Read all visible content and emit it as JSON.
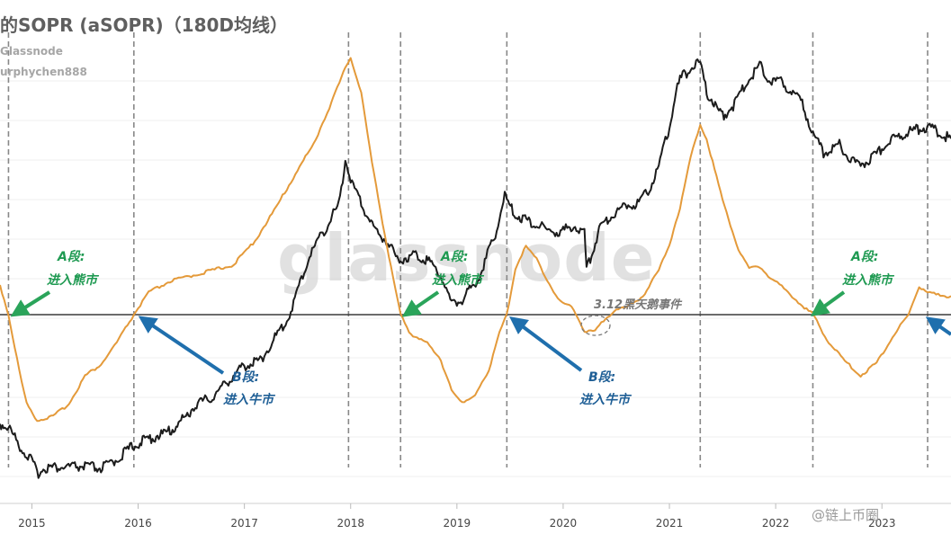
{
  "header": {
    "title": "的SOPR (aSOPR)（180D均线）",
    "source": "Glassnode",
    "author": "urphychen888"
  },
  "watermark": "glassnode",
  "footer_brand": "@链上币圈",
  "colors": {
    "price": "#1c1c1c",
    "asopr": "#e49a3a",
    "green_arrow": "#2aa45a",
    "blue_arrow": "#1f6fad",
    "divider": "#888888"
  },
  "chart_data": {
    "type": "line",
    "x_ticks": [
      "2015",
      "2016",
      "2017",
      "2018",
      "2019",
      "2020",
      "2021",
      "2022",
      "2023"
    ],
    "xlim": [
      2014.7,
      2023.65
    ],
    "reference_line": {
      "value": 1.0,
      "series": "asopr"
    },
    "vertical_markers": [
      2014.78,
      2015.96,
      2017.98,
      2018.47,
      2019.47,
      2021.29,
      2022.35,
      2023.43
    ],
    "series": [
      {
        "name": "",
        "points": [
          [
            2014.7,
            0.75
          ],
          [
            2014.78,
            0.72
          ],
          [
            2014.9,
            0.52
          ],
          [
            2015.0,
            0.4
          ],
          [
            2015.05,
            0.28
          ],
          [
            2015.12,
            0.34
          ],
          [
            2015.25,
            0.34
          ],
          [
            2015.5,
            0.35
          ],
          [
            2015.65,
            0.33
          ],
          [
            2015.75,
            0.38
          ],
          [
            2015.85,
            0.46
          ],
          [
            2015.96,
            0.55
          ],
          [
            2016.1,
            0.61
          ],
          [
            2016.3,
            0.68
          ],
          [
            2016.45,
            0.82
          ],
          [
            2016.55,
            0.94
          ],
          [
            2016.7,
            1.0
          ],
          [
            2016.85,
            1.16
          ],
          [
            2017.0,
            1.3
          ],
          [
            2017.15,
            1.35
          ],
          [
            2017.3,
            1.58
          ],
          [
            2017.4,
            1.72
          ],
          [
            2017.5,
            2.0
          ],
          [
            2017.6,
            2.3
          ],
          [
            2017.7,
            2.5
          ],
          [
            2017.8,
            2.65
          ],
          [
            2017.9,
            2.85
          ],
          [
            2017.95,
            3.25
          ],
          [
            2018.0,
            3.05
          ],
          [
            2018.1,
            2.82
          ],
          [
            2018.25,
            2.55
          ],
          [
            2018.35,
            2.47
          ],
          [
            2018.45,
            2.28
          ],
          [
            2018.47,
            2.3
          ],
          [
            2018.6,
            2.35
          ],
          [
            2018.75,
            2.28
          ],
          [
            2018.85,
            2.15
          ],
          [
            2018.95,
            1.88
          ],
          [
            2019.05,
            1.92
          ],
          [
            2019.2,
            2.12
          ],
          [
            2019.35,
            2.5
          ],
          [
            2019.45,
            2.9
          ],
          [
            2019.47,
            2.85
          ],
          [
            2019.55,
            2.72
          ],
          [
            2019.7,
            2.65
          ],
          [
            2019.85,
            2.58
          ],
          [
            2019.95,
            2.55
          ],
          [
            2020.0,
            2.57
          ],
          [
            2020.1,
            2.62
          ],
          [
            2020.2,
            2.55
          ],
          [
            2020.22,
            2.2
          ],
          [
            2020.35,
            2.62
          ],
          [
            2020.5,
            2.75
          ],
          [
            2020.6,
            2.82
          ],
          [
            2020.7,
            2.83
          ],
          [
            2020.8,
            2.95
          ],
          [
            2020.9,
            3.18
          ],
          [
            2021.0,
            3.55
          ],
          [
            2021.05,
            3.82
          ],
          [
            2021.1,
            4.0
          ],
          [
            2021.2,
            4.1
          ],
          [
            2021.29,
            4.15
          ],
          [
            2021.35,
            3.88
          ],
          [
            2021.5,
            3.65
          ],
          [
            2021.6,
            3.75
          ],
          [
            2021.7,
            3.92
          ],
          [
            2021.8,
            4.07
          ],
          [
            2021.85,
            4.14
          ],
          [
            2021.95,
            3.98
          ],
          [
            2022.05,
            3.98
          ],
          [
            2022.15,
            3.88
          ],
          [
            2022.25,
            3.76
          ],
          [
            2022.35,
            3.5
          ],
          [
            2022.45,
            3.3
          ],
          [
            2022.6,
            3.38
          ],
          [
            2022.75,
            3.2
          ],
          [
            2022.85,
            3.22
          ],
          [
            2022.95,
            3.3
          ],
          [
            2023.1,
            3.44
          ],
          [
            2023.3,
            3.52
          ],
          [
            2023.45,
            3.55
          ],
          [
            2023.55,
            3.48
          ],
          [
            2023.65,
            3.44
          ]
        ]
      },
      {
        "name": "",
        "points": [
          [
            2014.7,
            1.016
          ],
          [
            2014.78,
            1.0
          ],
          [
            2014.88,
            0.97
          ],
          [
            2014.95,
            0.952
          ],
          [
            2015.05,
            0.943
          ],
          [
            2015.2,
            0.945
          ],
          [
            2015.35,
            0.952
          ],
          [
            2015.5,
            0.967
          ],
          [
            2015.65,
            0.973
          ],
          [
            2015.8,
            0.985
          ],
          [
            2015.96,
            1.0
          ],
          [
            2016.1,
            1.012
          ],
          [
            2016.3,
            1.018
          ],
          [
            2016.5,
            1.021
          ],
          [
            2016.7,
            1.024
          ],
          [
            2016.9,
            1.027
          ],
          [
            2017.1,
            1.04
          ],
          [
            2017.3,
            1.058
          ],
          [
            2017.5,
            1.078
          ],
          [
            2017.65,
            1.092
          ],
          [
            2017.8,
            1.112
          ],
          [
            2017.95,
            1.133
          ],
          [
            2018.0,
            1.139
          ],
          [
            2018.1,
            1.12
          ],
          [
            2018.2,
            1.082
          ],
          [
            2018.3,
            1.05
          ],
          [
            2018.4,
            1.02
          ],
          [
            2018.47,
            1.0
          ],
          [
            2018.55,
            0.99
          ],
          [
            2018.7,
            0.986
          ],
          [
            2018.85,
            0.975
          ],
          [
            2018.95,
            0.96
          ],
          [
            2019.05,
            0.952
          ],
          [
            2019.15,
            0.955
          ],
          [
            2019.3,
            0.97
          ],
          [
            2019.4,
            0.99
          ],
          [
            2019.47,
            1.0
          ],
          [
            2019.55,
            1.025
          ],
          [
            2019.65,
            1.037
          ],
          [
            2019.75,
            1.03
          ],
          [
            2019.85,
            1.019
          ],
          [
            2019.95,
            1.008
          ],
          [
            2020.1,
            1.003
          ],
          [
            2020.2,
            0.991
          ],
          [
            2020.3,
            0.991
          ],
          [
            2020.4,
            0.998
          ],
          [
            2020.5,
            1.003
          ],
          [
            2020.6,
            1.004
          ],
          [
            2020.75,
            1.01
          ],
          [
            2020.9,
            1.024
          ],
          [
            2021.0,
            1.038
          ],
          [
            2021.1,
            1.058
          ],
          [
            2021.2,
            1.085
          ],
          [
            2021.29,
            1.103
          ],
          [
            2021.35,
            1.095
          ],
          [
            2021.5,
            1.062
          ],
          [
            2021.65,
            1.035
          ],
          [
            2021.75,
            1.025
          ],
          [
            2021.85,
            1.026
          ],
          [
            2021.95,
            1.02
          ],
          [
            2022.1,
            1.013
          ],
          [
            2022.25,
            1.005
          ],
          [
            2022.35,
            1.0
          ],
          [
            2022.5,
            0.985
          ],
          [
            2022.65,
            0.975
          ],
          [
            2022.8,
            0.967
          ],
          [
            2022.95,
            0.974
          ],
          [
            2023.1,
            0.988
          ],
          [
            2023.25,
            1.0
          ],
          [
            2023.35,
            1.015
          ],
          [
            2023.45,
            1.012
          ],
          [
            2023.55,
            1.01
          ],
          [
            2023.65,
            1.01
          ]
        ]
      }
    ]
  },
  "annotations": [
    {
      "label": "A段:",
      "sub": "进入熊市",
      "color": "green"
    },
    {
      "label": "B段:",
      "sub": "进入牛市",
      "color": "blue"
    },
    {
      "label": "A段:",
      "sub": "进入熊市",
      "color": "green"
    },
    {
      "label": "B段:",
      "sub": "进入牛市",
      "color": "blue"
    },
    {
      "label": "A段:",
      "sub": "进入熊市",
      "color": "green"
    },
    {
      "label": "3.12黑天鹅事件",
      "sub": "",
      "color": "gray"
    }
  ]
}
